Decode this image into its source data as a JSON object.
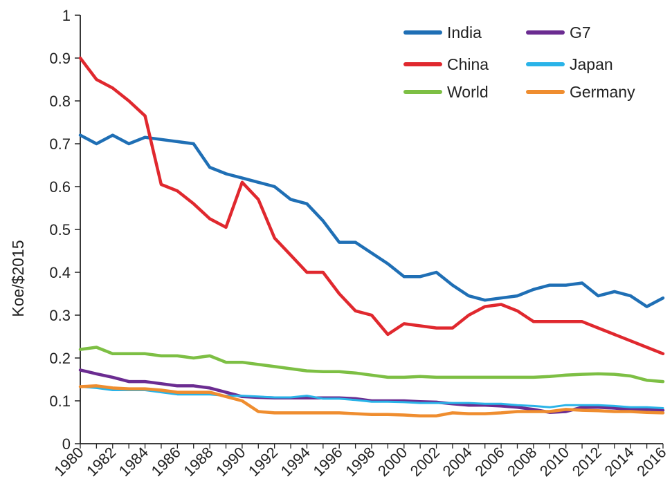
{
  "chart_data": {
    "type": "line",
    "title": "",
    "xlabel": "",
    "ylabel": "Koe/$2015",
    "xlim": [
      1980,
      2016
    ],
    "ylim": [
      0,
      1
    ],
    "grid": false,
    "legend_position": "top-right",
    "y_ticks": [
      "0",
      "0.1",
      "0.2",
      "0.3",
      "0.4",
      "0.5",
      "0.6",
      "0.7",
      "0.8",
      "0.9",
      "1"
    ],
    "x_ticks": [
      "1980",
      "1982",
      "1984",
      "1986",
      "1988",
      "1990",
      "1992",
      "1994",
      "1996",
      "1998",
      "2000",
      "2002",
      "2004",
      "2006",
      "2008",
      "2010",
      "2012",
      "2014",
      "2016"
    ],
    "x": [
      1980,
      1981,
      1982,
      1983,
      1984,
      1985,
      1986,
      1987,
      1988,
      1989,
      1990,
      1991,
      1992,
      1993,
      1994,
      1995,
      1996,
      1997,
      1998,
      1999,
      2000,
      2001,
      2002,
      2003,
      2004,
      2005,
      2006,
      2007,
      2008,
      2009,
      2010,
      2011,
      2012,
      2013,
      2014,
      2015,
      2016
    ],
    "series": [
      {
        "name": "India",
        "color": "#1f6fb5",
        "width": 4.5,
        "values": [
          0.72,
          0.7,
          0.72,
          0.7,
          0.715,
          0.71,
          0.705,
          0.7,
          0.645,
          0.63,
          0.62,
          0.61,
          0.6,
          0.57,
          0.56,
          0.52,
          0.47,
          0.47,
          0.445,
          0.42,
          0.39,
          0.39,
          0.4,
          0.37,
          0.345,
          0.335,
          0.34,
          0.345,
          0.36,
          0.37,
          0.37,
          0.375,
          0.345,
          0.355,
          0.345,
          0.32,
          0.34
        ]
      },
      {
        "name": "China",
        "color": "#e0282e",
        "width": 4.5,
        "values": [
          0.9,
          0.85,
          0.83,
          0.8,
          0.765,
          0.605,
          0.59,
          0.56,
          0.525,
          0.505,
          0.61,
          0.57,
          0.48,
          0.44,
          0.4,
          0.4,
          0.35,
          0.31,
          0.3,
          0.255,
          0.28,
          0.275,
          0.27,
          0.27,
          0.3,
          0.32,
          0.325,
          0.31,
          0.285,
          0.285,
          0.285,
          0.285,
          0.27,
          0.255,
          0.24,
          0.225,
          0.21
        ]
      },
      {
        "name": "World",
        "color": "#7dbf44",
        "width": 4.5,
        "values": [
          0.22,
          0.225,
          0.21,
          0.21,
          0.21,
          0.205,
          0.205,
          0.2,
          0.205,
          0.19,
          0.19,
          0.185,
          0.18,
          0.175,
          0.17,
          0.168,
          0.168,
          0.165,
          0.16,
          0.155,
          0.155,
          0.157,
          0.155,
          0.155,
          0.155,
          0.155,
          0.155,
          0.155,
          0.155,
          0.157,
          0.16,
          0.162,
          0.163,
          0.162,
          0.158,
          0.148,
          0.145
        ]
      },
      {
        "name": "G7",
        "color": "#6b2c91",
        "width": 4.5,
        "values": [
          0.172,
          0.163,
          0.155,
          0.145,
          0.145,
          0.14,
          0.135,
          0.135,
          0.13,
          0.12,
          0.11,
          0.108,
          0.107,
          0.107,
          0.107,
          0.107,
          0.107,
          0.105,
          0.1,
          0.1,
          0.1,
          0.098,
          0.097,
          0.093,
          0.09,
          0.09,
          0.088,
          0.085,
          0.08,
          0.073,
          0.075,
          0.085,
          0.085,
          0.083,
          0.08,
          0.08,
          0.078
        ]
      },
      {
        "name": "Japan",
        "color": "#29b3e8",
        "width": 3,
        "values": [
          0.133,
          0.13,
          0.125,
          0.125,
          0.125,
          0.12,
          0.115,
          0.115,
          0.115,
          0.112,
          0.112,
          0.11,
          0.108,
          0.108,
          0.112,
          0.105,
          0.105,
          0.102,
          0.098,
          0.098,
          0.097,
          0.095,
          0.095,
          0.095,
          0.095,
          0.093,
          0.093,
          0.09,
          0.088,
          0.085,
          0.09,
          0.09,
          0.09,
          0.088,
          0.085,
          0.085,
          0.083
        ]
      },
      {
        "name": "Germany",
        "color": "#ef8d2f",
        "width": 4.5,
        "values": [
          0.133,
          0.135,
          0.13,
          0.128,
          0.128,
          0.125,
          0.12,
          0.12,
          0.12,
          0.11,
          0.1,
          0.075,
          0.072,
          0.072,
          0.072,
          0.072,
          0.072,
          0.07,
          0.068,
          0.068,
          0.067,
          0.065,
          0.065,
          0.072,
          0.07,
          0.07,
          0.072,
          0.075,
          0.075,
          0.075,
          0.08,
          0.078,
          0.077,
          0.075,
          0.075,
          0.073,
          0.072
        ]
      }
    ]
  }
}
